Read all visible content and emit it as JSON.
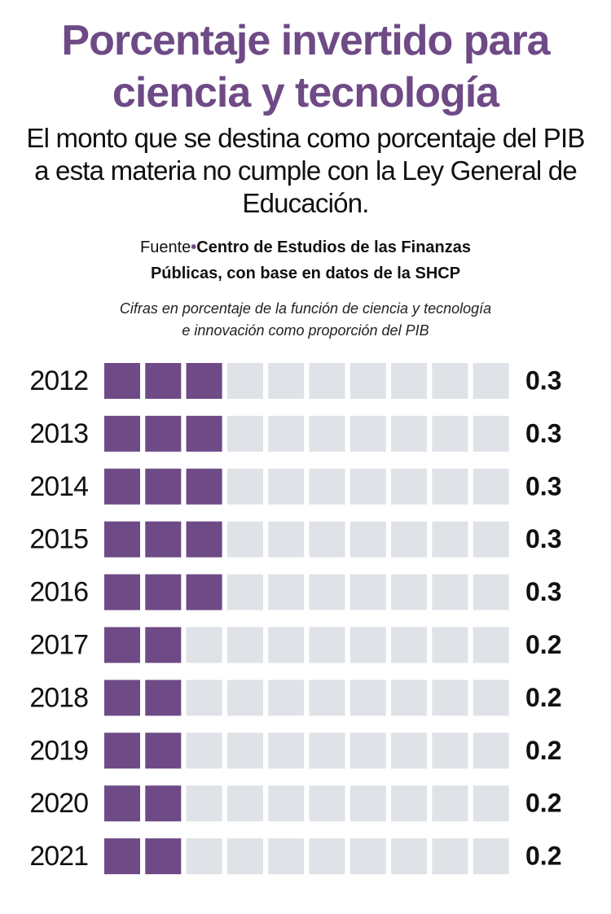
{
  "chart_data": {
    "type": "pictogram",
    "title": "Porcentaje invertido para ciencia y tecnología",
    "subtitle": "El monto que se destina como porcentaje del PIB a esta materia no cumple con la Ley General de Educación.",
    "source_label": "Fuente",
    "source": "Centro de Estudios de las Finanzas Públicas, con base en datos de la SHCP",
    "note": "Cifras en porcentaje de la función de ciencia y tecnología e innovación  como proporción del PIB",
    "categories": [
      "2012",
      "2013",
      "2014",
      "2015",
      "2016",
      "2017",
      "2018",
      "2019",
      "2020",
      "2021"
    ],
    "values": [
      0.3,
      0.3,
      0.3,
      0.3,
      0.3,
      0.2,
      0.2,
      0.2,
      0.2,
      0.2
    ],
    "xlim": [
      0,
      1
    ],
    "color": "#6e4a86",
    "empty_color": "#dfe2e7"
  }
}
